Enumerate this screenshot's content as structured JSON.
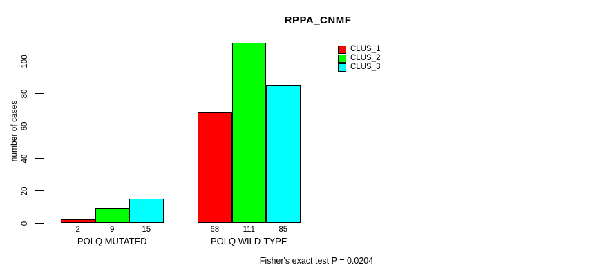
{
  "title": "RPPA_CNMF",
  "footer": "Fisher's exact test P = 0.0204",
  "chart_data": {
    "type": "bar",
    "title": "RPPA_CNMF",
    "xlabel": "",
    "ylabel": "number of cases",
    "ylim": [
      0,
      100
    ],
    "yticks": [
      0,
      20,
      40,
      60,
      80,
      100
    ],
    "categories": [
      "POLQ MUTATED",
      "POLQ WILD-TYPE"
    ],
    "series": [
      {
        "name": "CLUS_1",
        "color": "#ff0000",
        "values": [
          2,
          68
        ]
      },
      {
        "name": "CLUS_2",
        "color": "#00ff00",
        "values": [
          9,
          111
        ]
      },
      {
        "name": "CLUS_3",
        "color": "#00ffff",
        "values": [
          15,
          85
        ]
      }
    ],
    "bar_value_labels": [
      [
        2,
        9,
        15
      ],
      [
        68,
        111,
        85
      ]
    ],
    "legend_position": "top-right",
    "grid": false,
    "annotation": "Fisher's exact test P = 0.0204"
  }
}
